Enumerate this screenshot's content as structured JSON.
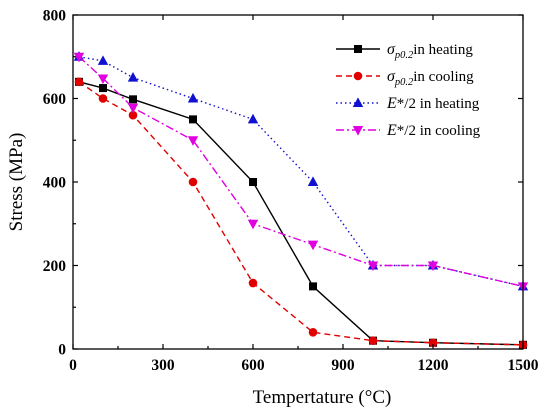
{
  "chart_data": {
    "type": "line",
    "title": "",
    "xlabel": "Tempertature (°C)",
    "ylabel": "Stress (MPa)",
    "xlim": [
      0,
      1500
    ],
    "ylim": [
      0,
      800
    ],
    "xticks": [
      0,
      300,
      600,
      900,
      1200,
      1500
    ],
    "yticks": [
      0,
      200,
      400,
      600,
      800
    ],
    "grid": false,
    "legend_position": "top-right",
    "series": [
      {
        "name": "σp0.2in heating",
        "legend": {
          "sym": "σ",
          "sub": "p0.2",
          "rest": "in heating"
        },
        "color": "#000000",
        "line_style": "solid",
        "marker": "square",
        "x": [
          20,
          100,
          200,
          400,
          600,
          800,
          1000,
          1200,
          1500
        ],
        "y": [
          640,
          625,
          598,
          550,
          400,
          150,
          20,
          15,
          10
        ]
      },
      {
        "name": "σp0.2in cooling",
        "legend": {
          "sym": "σ",
          "sub": "p0.2",
          "rest": "in cooling"
        },
        "color": "#e00000",
        "line_style": "dashed",
        "marker": "circle",
        "x": [
          20,
          100,
          200,
          400,
          600,
          800,
          1000,
          1200,
          1500
        ],
        "y": [
          640,
          600,
          560,
          400,
          158,
          40,
          20,
          15,
          10
        ]
      },
      {
        "name": "E*/2 in heating",
        "legend": {
          "sym": "E",
          "sub": "",
          "rest": "*/2 in heating"
        },
        "color": "#1010d0",
        "line_style": "dotted",
        "marker": "triangle-up",
        "x": [
          20,
          100,
          200,
          400,
          600,
          800,
          1000,
          1200,
          1500
        ],
        "y": [
          700,
          690,
          650,
          600,
          550,
          400,
          200,
          200,
          150
        ]
      },
      {
        "name": "E*/2 in cooling",
        "legend": {
          "sym": "E",
          "sub": "",
          "rest": "*/2 in cooling"
        },
        "color": "#e000e0",
        "line_style": "dashdot",
        "marker": "triangle-down",
        "x": [
          20,
          100,
          200,
          400,
          600,
          800,
          1000,
          1200,
          1500
        ],
        "y": [
          700,
          648,
          578,
          500,
          300,
          250,
          200,
          200,
          150
        ]
      }
    ]
  }
}
